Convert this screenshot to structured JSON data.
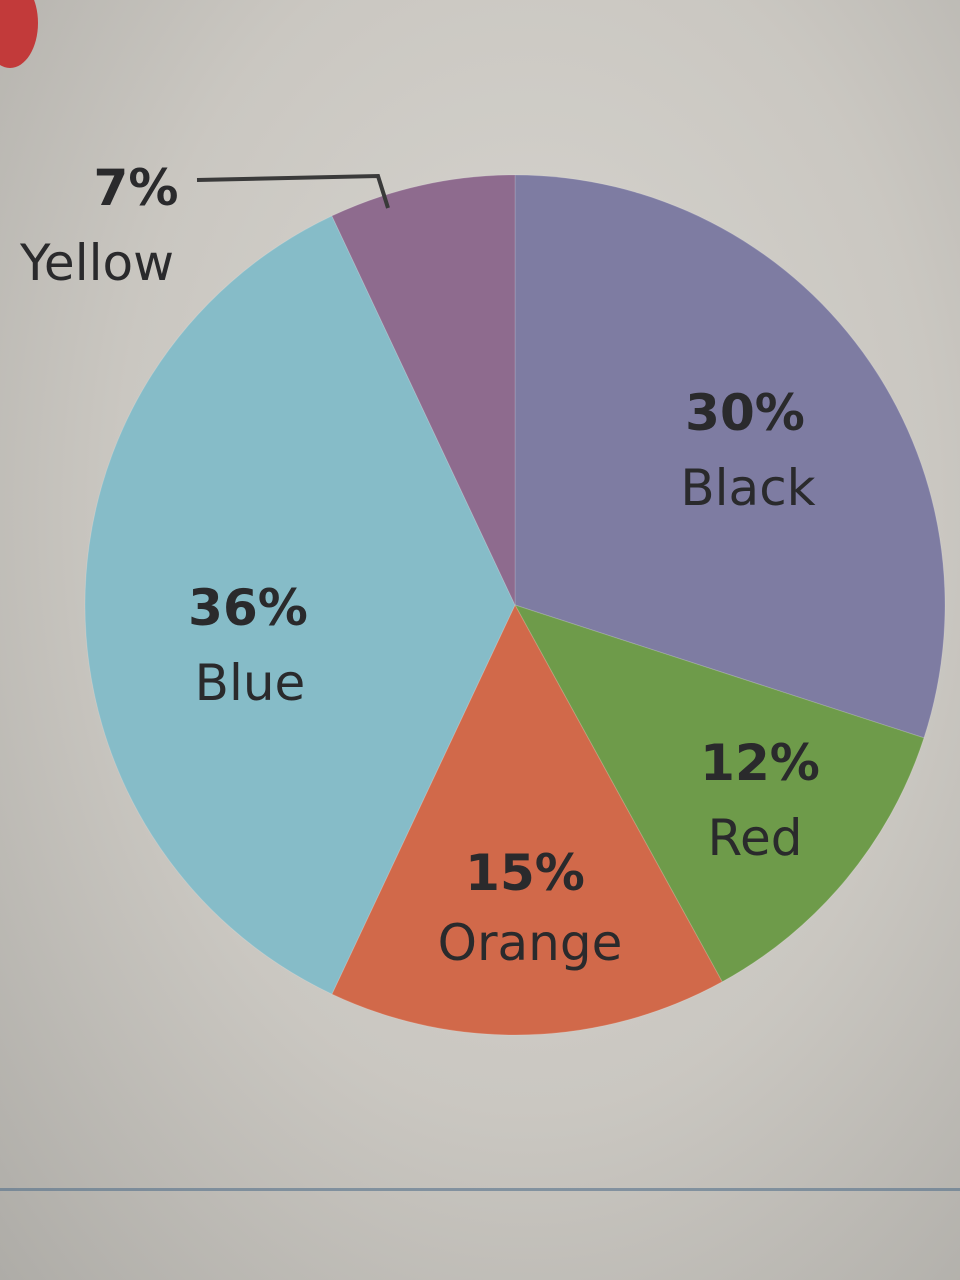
{
  "chart_data": {
    "type": "pie",
    "title": "",
    "slices": [
      {
        "name": "Black",
        "label": "30%",
        "value": 30,
        "color": "#7e7ca2"
      },
      {
        "name": "Red",
        "label": "12%",
        "value": 12,
        "color": "#6e9b4a"
      },
      {
        "name": "Orange",
        "label": "15%",
        "value": 15,
        "color": "#d1694a"
      },
      {
        "name": "Blue",
        "label": "36%",
        "value": 36,
        "color": "#86bcc8"
      },
      {
        "name": "Yellow",
        "label": "7%",
        "value": 7,
        "color": "#8e6b8e"
      }
    ],
    "legend": "none"
  },
  "colors": {
    "label_text": "#2a2a2c",
    "leader_line": "#3a3a3a",
    "badge": "#c23a3a"
  }
}
